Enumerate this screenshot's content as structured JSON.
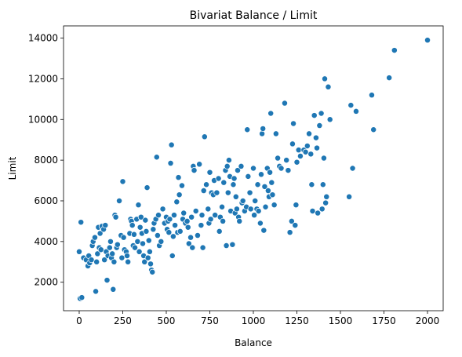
{
  "chart_data": {
    "type": "scatter",
    "title": "Bivariat Balance / Limit",
    "xlabel": "Balance",
    "ylabel": "Limit",
    "xlim": [
      -90,
      2090
    ],
    "ylim": [
      600,
      14600
    ],
    "x_ticks": [
      0,
      250,
      500,
      750,
      1000,
      1250,
      1500,
      1750,
      2000
    ],
    "y_ticks": [
      2000,
      4000,
      6000,
      8000,
      10000,
      12000,
      14000
    ],
    "x_tick_labels": [
      "0",
      "250",
      "500",
      "750",
      "1000",
      "1250",
      "1500",
      "1750",
      "2000"
    ],
    "y_tick_labels": [
      "2000",
      "4000",
      "6000",
      "8000",
      "10000",
      "12000",
      "14000"
    ],
    "grid": false,
    "legend": "none",
    "point_color": "#1f77b4",
    "points": [
      [
        0,
        3500
      ],
      [
        10,
        4950
      ],
      [
        5,
        1200
      ],
      [
        15,
        1250
      ],
      [
        25,
        3200
      ],
      [
        40,
        3100
      ],
      [
        50,
        2800
      ],
      [
        55,
        3300
      ],
      [
        60,
        2950
      ],
      [
        70,
        3100
      ],
      [
        75,
        3800
      ],
      [
        80,
        4000
      ],
      [
        90,
        4200
      ],
      [
        95,
        1550
      ],
      [
        100,
        3000
      ],
      [
        105,
        3400
      ],
      [
        110,
        4700
      ],
      [
        115,
        3700
      ],
      [
        120,
        4400
      ],
      [
        125,
        3600
      ],
      [
        130,
        4750
      ],
      [
        140,
        4600
      ],
      [
        145,
        3100
      ],
      [
        150,
        4800
      ],
      [
        155,
        3500
      ],
      [
        160,
        2100
      ],
      [
        165,
        3300
      ],
      [
        175,
        3700
      ],
      [
        180,
        4000
      ],
      [
        185,
        3200
      ],
      [
        190,
        3400
      ],
      [
        195,
        1650
      ],
      [
        200,
        3000
      ],
      [
        205,
        5300
      ],
      [
        210,
        5200
      ],
      [
        215,
        3700
      ],
      [
        220,
        3850
      ],
      [
        230,
        6000
      ],
      [
        240,
        4300
      ],
      [
        245,
        3200
      ],
      [
        250,
        6950
      ],
      [
        255,
        4200
      ],
      [
        260,
        3600
      ],
      [
        270,
        3500
      ],
      [
        275,
        3300
      ],
      [
        280,
        3000
      ],
      [
        290,
        4400
      ],
      [
        295,
        5100
      ],
      [
        300,
        5000
      ],
      [
        305,
        4800
      ],
      [
        310,
        3800
      ],
      [
        315,
        4350
      ],
      [
        320,
        3700
      ],
      [
        330,
        5100
      ],
      [
        335,
        4000
      ],
      [
        340,
        5800
      ],
      [
        345,
        3500
      ],
      [
        350,
        4700
      ],
      [
        355,
        5200
      ],
      [
        360,
        4400
      ],
      [
        365,
        3900
      ],
      [
        370,
        3300
      ],
      [
        375,
        3000
      ],
      [
        380,
        5050
      ],
      [
        385,
        4500
      ],
      [
        390,
        6650
      ],
      [
        395,
        3200
      ],
      [
        400,
        4050
      ],
      [
        405,
        3500
      ],
      [
        410,
        2900
      ],
      [
        415,
        2600
      ],
      [
        420,
        2500
      ],
      [
        425,
        4600
      ],
      [
        430,
        4900
      ],
      [
        440,
        5100
      ],
      [
        445,
        8150
      ],
      [
        450,
        4300
      ],
      [
        455,
        5300
      ],
      [
        460,
        3800
      ],
      [
        470,
        4000
      ],
      [
        480,
        5600
      ],
      [
        490,
        4900
      ],
      [
        500,
        5200
      ],
      [
        505,
        4600
      ],
      [
        510,
        5000
      ],
      [
        515,
        4450
      ],
      [
        520,
        5100
      ],
      [
        525,
        7850
      ],
      [
        530,
        8750
      ],
      [
        535,
        3300
      ],
      [
        540,
        4250
      ],
      [
        545,
        5300
      ],
      [
        550,
        4800
      ],
      [
        560,
        5950
      ],
      [
        565,
        4450
      ],
      [
        570,
        7150
      ],
      [
        575,
        6300
      ],
      [
        580,
        4500
      ],
      [
        590,
        6750
      ],
      [
        595,
        5100
      ],
      [
        600,
        5400
      ],
      [
        610,
        4900
      ],
      [
        620,
        5000
      ],
      [
        625,
        4700
      ],
      [
        630,
        3900
      ],
      [
        640,
        4200
      ],
      [
        645,
        5200
      ],
      [
        650,
        3700
      ],
      [
        655,
        7700
      ],
      [
        660,
        7500
      ],
      [
        670,
        5500
      ],
      [
        680,
        4300
      ],
      [
        690,
        7800
      ],
      [
        700,
        4800
      ],
      [
        705,
        5300
      ],
      [
        710,
        3700
      ],
      [
        715,
        6500
      ],
      [
        720,
        9150
      ],
      [
        730,
        6800
      ],
      [
        740,
        5600
      ],
      [
        745,
        4900
      ],
      [
        750,
        7400
      ],
      [
        755,
        5100
      ],
      [
        760,
        6400
      ],
      [
        770,
        6300
      ],
      [
        775,
        7000
      ],
      [
        780,
        5300
      ],
      [
        790,
        6400
      ],
      [
        800,
        7100
      ],
      [
        805,
        4500
      ],
      [
        810,
        5200
      ],
      [
        820,
        5700
      ],
      [
        825,
        5000
      ],
      [
        830,
        6900
      ],
      [
        840,
        7500
      ],
      [
        845,
        3800
      ],
      [
        850,
        7700
      ],
      [
        855,
        6400
      ],
      [
        860,
        8000
      ],
      [
        865,
        7200
      ],
      [
        870,
        5500
      ],
      [
        880,
        3850
      ],
      [
        885,
        6800
      ],
      [
        890,
        7100
      ],
      [
        895,
        5400
      ],
      [
        900,
        6200
      ],
      [
        905,
        5600
      ],
      [
        910,
        7500
      ],
      [
        915,
        5200
      ],
      [
        920,
        5000
      ],
      [
        930,
        7700
      ],
      [
        935,
        5900
      ],
      [
        940,
        6000
      ],
      [
        950,
        5500
      ],
      [
        960,
        5700
      ],
      [
        965,
        9500
      ],
      [
        970,
        7200
      ],
      [
        980,
        6400
      ],
      [
        985,
        5600
      ],
      [
        1000,
        7600
      ],
      [
        1005,
        5300
      ],
      [
        1010,
        6000
      ],
      [
        1020,
        5600
      ],
      [
        1025,
        6800
      ],
      [
        1030,
        5500
      ],
      [
        1040,
        4900
      ],
      [
        1045,
        7300
      ],
      [
        1050,
        9300
      ],
      [
        1055,
        9550
      ],
      [
        1060,
        4550
      ],
      [
        1065,
        6700
      ],
      [
        1070,
        5700
      ],
      [
        1080,
        7600
      ],
      [
        1085,
        6500
      ],
      [
        1090,
        6200
      ],
      [
        1095,
        7400
      ],
      [
        1100,
        10300
      ],
      [
        1105,
        6900
      ],
      [
        1110,
        6300
      ],
      [
        1120,
        5800
      ],
      [
        1130,
        9300
      ],
      [
        1140,
        8100
      ],
      [
        1150,
        7700
      ],
      [
        1160,
        7600
      ],
      [
        1180,
        10800
      ],
      [
        1190,
        8000
      ],
      [
        1200,
        7500
      ],
      [
        1210,
        4450
      ],
      [
        1220,
        5000
      ],
      [
        1225,
        8800
      ],
      [
        1230,
        9800
      ],
      [
        1240,
        4800
      ],
      [
        1245,
        5800
      ],
      [
        1250,
        7900
      ],
      [
        1260,
        8500
      ],
      [
        1270,
        8200
      ],
      [
        1290,
        8500
      ],
      [
        1300,
        8400
      ],
      [
        1310,
        8700
      ],
      [
        1320,
        9300
      ],
      [
        1330,
        8300
      ],
      [
        1335,
        6800
      ],
      [
        1340,
        5500
      ],
      [
        1350,
        10200
      ],
      [
        1360,
        9100
      ],
      [
        1365,
        8600
      ],
      [
        1370,
        5400
      ],
      [
        1380,
        9700
      ],
      [
        1390,
        10300
      ],
      [
        1395,
        5600
      ],
      [
        1400,
        6800
      ],
      [
        1405,
        8100
      ],
      [
        1410,
        12000
      ],
      [
        1415,
        5900
      ],
      [
        1420,
        6200
      ],
      [
        1430,
        11600
      ],
      [
        1440,
        10000
      ],
      [
        1550,
        6200
      ],
      [
        1560,
        10700
      ],
      [
        1570,
        7600
      ],
      [
        1590,
        10400
      ],
      [
        1680,
        11200
      ],
      [
        1690,
        9500
      ],
      [
        1780,
        12050
      ],
      [
        1810,
        13400
      ],
      [
        2000,
        13900
      ]
    ]
  }
}
